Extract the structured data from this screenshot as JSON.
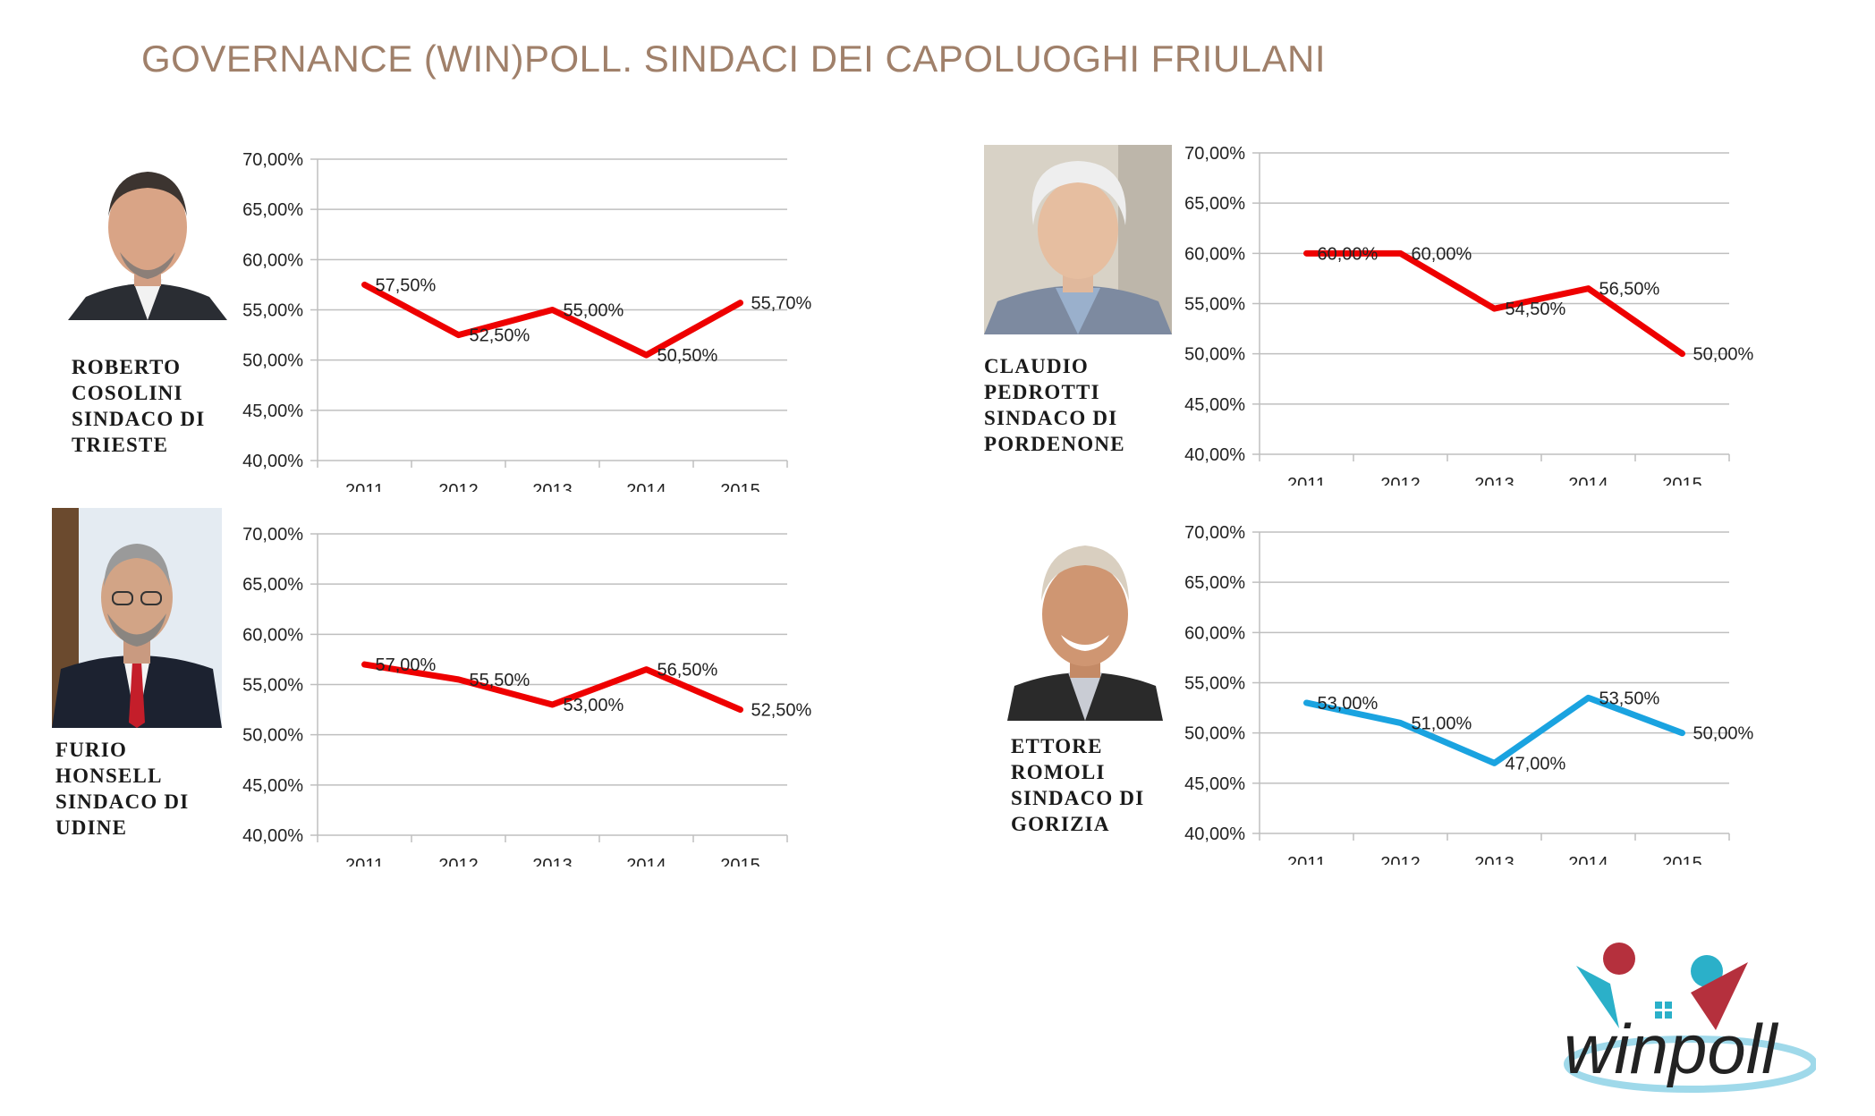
{
  "title": "GOVERNANCE (WIN)POLL. SINDACI DEI CAPOLUOGHI FRIULANI",
  "colors": {
    "title": "#a0806a",
    "red_series": "#ee0000",
    "blue_series": "#1aa3e0",
    "grid": "#bfbfbf"
  },
  "mayors": [
    {
      "id": "trieste",
      "name_line1": "ROBERTO",
      "name_line2": "COSOLINI",
      "role_line1": "SINDACO DI",
      "role_line2": "TRIESTE",
      "photo": "portrait-trieste"
    },
    {
      "id": "pordenone",
      "name_line1": "CLAUDIO",
      "name_line2": "PEDROTTI",
      "role_line1": "SINDACO DI",
      "role_line2": "PORDENONE",
      "photo": "portrait-pordenone"
    },
    {
      "id": "udine",
      "name_line1": "FURIO",
      "name_line2": "HONSELL",
      "role_line1": "SINDACO DI",
      "role_line2": "UDINE",
      "photo": "portrait-udine"
    },
    {
      "id": "gorizia",
      "name_line1": "ETTORE",
      "name_line2": "ROMOLI",
      "role_line1": "SINDACO DI",
      "role_line2": "GORIZIA",
      "photo": "portrait-gorizia"
    }
  ],
  "chart_data": [
    {
      "type": "line",
      "mayor": "trieste",
      "x": [
        "2011",
        "2012",
        "2013",
        "2014",
        "2015"
      ],
      "values": [
        57.5,
        52.5,
        55.0,
        50.5,
        55.7
      ],
      "data_labels": [
        "57,50%",
        "52,50%",
        "55,00%",
        "50,50%",
        "55,70%"
      ],
      "y_ticks": [
        "70,00%",
        "65,00%",
        "60,00%",
        "55,00%",
        "50,00%",
        "45,00%",
        "40,00%"
      ],
      "ylim": [
        40,
        70
      ],
      "color": "#ee0000",
      "grid": true,
      "legend": "none"
    },
    {
      "type": "line",
      "mayor": "pordenone",
      "x": [
        "2011",
        "2012",
        "2013",
        "2014",
        "2015"
      ],
      "values": [
        60.0,
        60.0,
        54.5,
        56.5,
        50.0
      ],
      "data_labels": [
        "60,00%",
        "60,00%",
        "54,50%",
        "56,50%",
        "50,00%"
      ],
      "y_ticks": [
        "70,00%",
        "65,00%",
        "60,00%",
        "55,00%",
        "50,00%",
        "45,00%",
        "40,00%"
      ],
      "ylim": [
        40,
        70
      ],
      "color": "#ee0000",
      "grid": true,
      "legend": "none"
    },
    {
      "type": "line",
      "mayor": "udine",
      "x": [
        "2011",
        "2012",
        "2013",
        "2014",
        "2015"
      ],
      "values": [
        57.0,
        55.5,
        53.0,
        56.5,
        52.5
      ],
      "data_labels": [
        "57,00%",
        "55,50%",
        "53,00%",
        "56,50%",
        "52,50%"
      ],
      "y_ticks": [
        "70,00%",
        "65,00%",
        "60,00%",
        "55,00%",
        "50,00%",
        "45,00%",
        "40,00%"
      ],
      "ylim": [
        40,
        70
      ],
      "color": "#ee0000",
      "grid": true,
      "legend": "none"
    },
    {
      "type": "line",
      "mayor": "gorizia",
      "x": [
        "2011",
        "2012",
        "2013",
        "2014",
        "2015"
      ],
      "values": [
        53.0,
        51.0,
        47.0,
        53.5,
        50.0
      ],
      "data_labels": [
        "53,00%",
        "51,00%",
        "47,00%",
        "53,50%",
        "50,00%"
      ],
      "y_ticks": [
        "70,00%",
        "65,00%",
        "60,00%",
        "55,00%",
        "50,00%",
        "45,00%",
        "40,00%"
      ],
      "ylim": [
        40,
        70
      ],
      "color": "#1aa3e0",
      "grid": true,
      "legend": "none"
    }
  ],
  "logo": {
    "text": "winpoll",
    "icon": "winpoll-logo"
  }
}
